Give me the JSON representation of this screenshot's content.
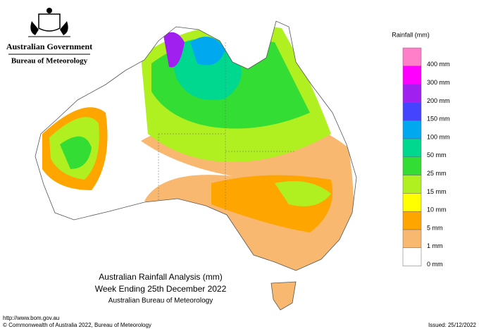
{
  "header": {
    "government": "Australian Government",
    "agency": "Bureau of Meteorology"
  },
  "legend": {
    "title": "Rainfall (mm)",
    "labels": [
      "400 mm",
      "300 mm",
      "200 mm",
      "150 mm",
      "100 mm",
      "50 mm",
      "25 mm",
      "15 mm",
      "10 mm",
      "5 mm",
      "1 mm",
      "0 mm"
    ],
    "colors": [
      "#ff80c8",
      "#ff00ff",
      "#a020f0",
      "#4444ff",
      "#00a8f0",
      "#00d890",
      "#33dd33",
      "#b0f020",
      "#ffff00",
      "#ffa500",
      "#f8b870",
      "#ffffff"
    ]
  },
  "map": {
    "title": "Australian Rainfall Analysis (mm)",
    "subtitle": "Week Ending 25th December 2022",
    "source": "Australian Bureau of Meteorology"
  },
  "footer": {
    "url": "http://www.bom.gov.au",
    "copyright": "© Commonwealth of Australia 2022, Bureau of Meteorology",
    "issued": "Issued: 25/12/2022"
  }
}
